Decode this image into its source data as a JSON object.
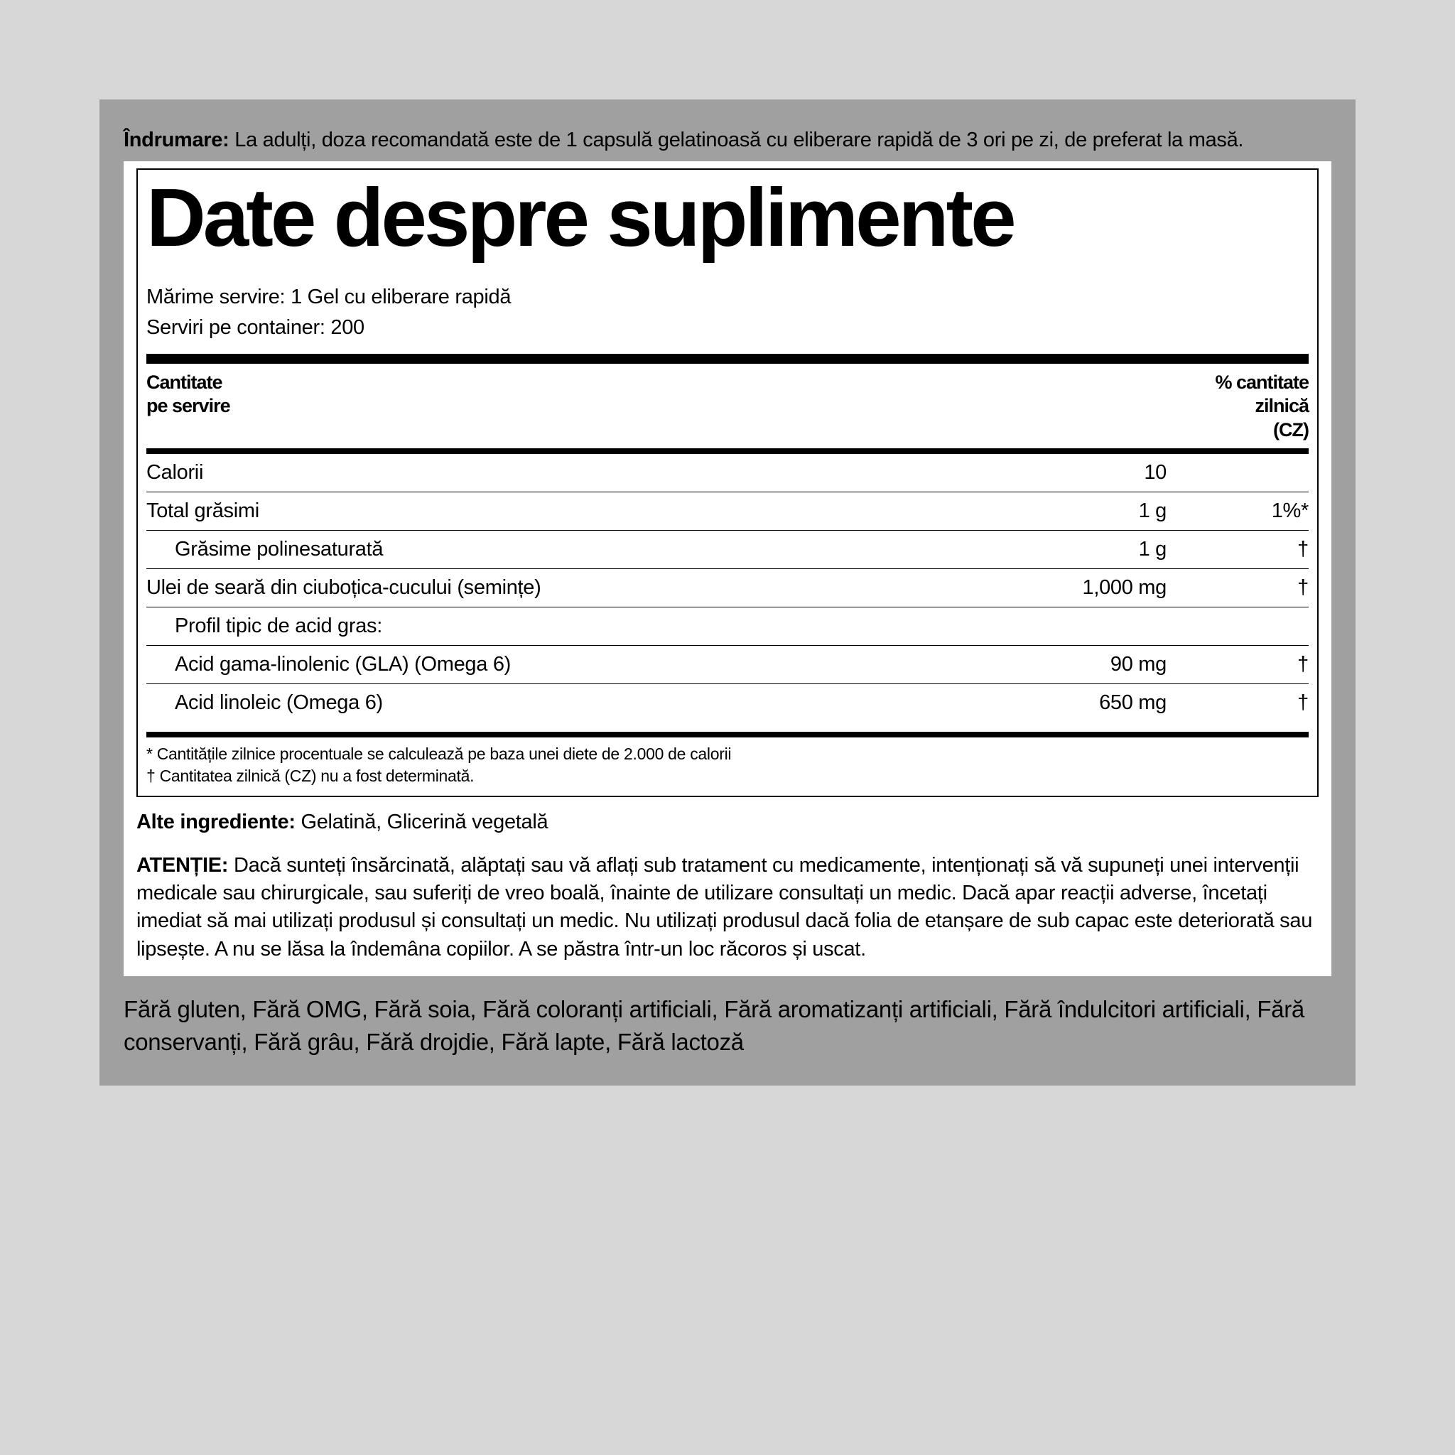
{
  "directions": {
    "label": "Îndrumare:",
    "text": "La adulți, doza recomandată este de 1 capsulă gelatinoasă cu eliberare rapidă de 3 ori pe zi, de preferat la masă."
  },
  "facts": {
    "title": "Date despre suplimente",
    "serving_size_label": "Mărime servire:",
    "serving_size_value": "1 Gel cu eliberare rapidă",
    "servings_label": "Serviri pe container:",
    "servings_value": "200",
    "header_left_line1": "Cantitate",
    "header_left_line2": "pe servire",
    "header_right_line1": "% cantitate",
    "header_right_line2": "zilnică",
    "header_right_line3": "(CZ)",
    "rows": [
      {
        "name": "Calorii",
        "indent": 0,
        "amount": "10",
        "dv": ""
      },
      {
        "name": "Total grăsimi",
        "indent": 0,
        "amount": "1 g",
        "dv": "1%*"
      },
      {
        "name": "Grăsime polinesaturată",
        "indent": 1,
        "amount": "1 g",
        "dv": "†"
      },
      {
        "name": "Ulei de seară din ciuboțica-cucului (semințe)",
        "indent": 0,
        "amount": "1,000 mg",
        "dv": "†"
      },
      {
        "name": "Profil tipic de acid gras:",
        "indent": 1,
        "amount": "",
        "dv": ""
      },
      {
        "name": "Acid gama-linolenic (GLA) (Omega 6)",
        "indent": 1,
        "amount": "90 mg",
        "dv": "†"
      },
      {
        "name": "Acid linoleic (Omega 6)",
        "indent": 1,
        "amount": "650 mg",
        "dv": "†"
      }
    ],
    "footnote1": "* Cantitățile zilnice procentuale se calculează pe baza unei diete de 2.000 de calorii",
    "footnote2": "† Cantitatea zilnică (CZ) nu a fost determinată."
  },
  "other_ingredients": {
    "label": "Alte ingrediente:",
    "text": "Gelatină, Glicerină vegetală"
  },
  "warning": {
    "label": "ATENȚIE:",
    "text": "Dacă sunteți însărcinată, alăptați sau vă aflați sub tratament cu medicamente, intenționați să vă supuneți unei intervenții medicale sau chirurgicale, sau suferiți de vreo boală, înainte de utilizare consultați un medic. Dacă apar reacții adverse, încetați imediat să mai utilizați produsul și consultați un medic. Nu utilizați produsul dacă folia de etanșare de sub capac este deteriorată sau lipsește. A nu se lăsa la îndemâna copiilor. A se păstra într-un loc răcoros și uscat."
  },
  "free_from": "Fără gluten, Fără OMG, Fără soia, Fără coloranți artificiali, Fără aromatizanți artificiali, Fără îndulcitori artificiali, Fără conservanți, Fără grâu, Fără drojdie, Fără lapte, Fără lactoză"
}
